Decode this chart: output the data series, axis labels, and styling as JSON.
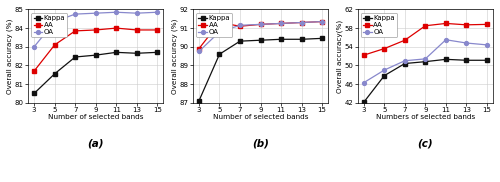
{
  "x_a": [
    3,
    5,
    7,
    9,
    11,
    13,
    15
  ],
  "x_b": [
    3,
    5,
    7,
    9,
    11,
    13,
    15
  ],
  "x_c": [
    3,
    5,
    7,
    9,
    11,
    13,
    15
  ],
  "a_kappa": [
    80.5,
    81.55,
    82.45,
    82.55,
    82.7,
    82.65,
    82.7
  ],
  "a_aa": [
    81.7,
    83.1,
    83.85,
    83.9,
    84.0,
    83.9,
    83.9
  ],
  "a_oa": [
    83.0,
    84.35,
    84.75,
    84.8,
    84.85,
    84.8,
    84.85
  ],
  "a_ylim": [
    80.0,
    85.0
  ],
  "a_yticks": [
    80,
    81,
    82,
    83,
    84,
    85
  ],
  "b_kappa": [
    87.1,
    89.6,
    90.3,
    90.35,
    90.4,
    90.4,
    90.45
  ],
  "b_aa": [
    89.9,
    91.3,
    91.1,
    91.2,
    91.25,
    91.3,
    91.35
  ],
  "b_oa": [
    89.75,
    90.8,
    91.15,
    91.2,
    91.25,
    91.3,
    91.35
  ],
  "b_ylim": [
    87.0,
    92.0
  ],
  "b_yticks": [
    87,
    88,
    89,
    90,
    91,
    92
  ],
  "c_kappa": [
    42.1,
    47.8,
    50.4,
    50.8,
    51.3,
    51.1,
    51.1
  ],
  "c_aa": [
    52.2,
    53.6,
    55.4,
    58.5,
    59.0,
    58.7,
    58.8
  ],
  "c_oa": [
    46.3,
    49.0,
    51.0,
    51.4,
    55.5,
    54.8,
    54.4
  ],
  "c_ylim": [
    42.0,
    62.0
  ],
  "c_yticks": [
    42,
    46,
    50,
    54,
    58,
    62
  ],
  "kappa_color": "#111111",
  "aa_color": "#dd0000",
  "oa_color": "#8888cc",
  "kappa_marker": "s",
  "aa_marker": "s",
  "oa_marker": "o",
  "linewidth": 0.9,
  "markersize": 2.8,
  "xlabel_a": "Number of selected bands",
  "xlabel_b": "Number of selected bands",
  "xlabel_c": "Numbers of selected bands",
  "ylabel_ab": "Overall accuracy (%)",
  "ylabel_c": "Overall accuracy(%)",
  "label_a": "(a)",
  "label_b": "(b)",
  "label_c": "(c)",
  "legend_labels": [
    "Kappa",
    "AA",
    "OA"
  ],
  "legend_fontsize": 5.0,
  "tick_fontsize": 5.0,
  "label_fontsize": 5.2,
  "sublabel_fontsize": 7.5,
  "grid_color": "#cccccc",
  "grid_lw": 0.4
}
